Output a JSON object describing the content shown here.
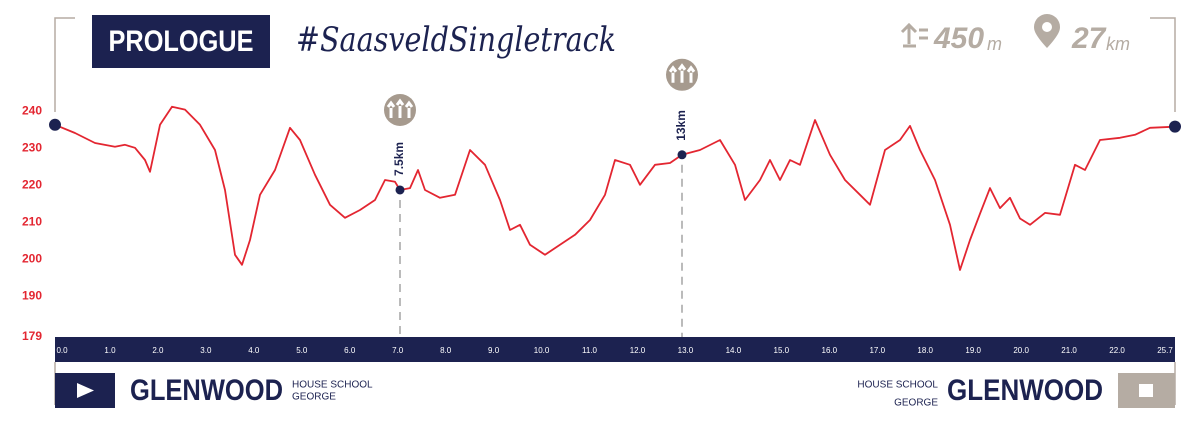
{
  "header": {
    "title": "PROLOGUE",
    "hashtag": "#SaasveldSingletrack",
    "climb": {
      "value": "450",
      "unit": "m"
    },
    "distance": {
      "value": "27",
      "unit": "km"
    }
  },
  "chart_data": {
    "type": "line",
    "color": "#e32631",
    "x": [
      0,
      0.4,
      0.8,
      1.2,
      1.4,
      1.6,
      1.8,
      1.9,
      2.1,
      2.34,
      2.6,
      2.9,
      3.2,
      3.4,
      3.6,
      3.74,
      3.9,
      4.1,
      4.4,
      4.7,
      4.9,
      5.2,
      5.5,
      5.8,
      6.1,
      6.4,
      6.6,
      6.8,
      6.9,
      7.1,
      7.26,
      7.4,
      7.7,
      8,
      8.3,
      8.6,
      8.9,
      9.1,
      9.3,
      9.5,
      9.8,
      10.1,
      10.4,
      10.7,
      11,
      11.2,
      11.5,
      11.7,
      12,
      12.3,
      12.54,
      12.9,
      13.3,
      13.6,
      13.8,
      14.1,
      14.3,
      14.5,
      14.7,
      14.9,
      15.2,
      15.5,
      15.8,
      16.1,
      16.3,
      16.6,
      16.9,
      17.1,
      17.3,
      17.6,
      17.9,
      18.1,
      18.3,
      18.5,
      18.7,
      18.9,
      19.1,
      19.3,
      19.5,
      19.8,
      20.1,
      20.4,
      20.6,
      20.9,
      21.3,
      21.6,
      21.9,
      22.4
    ],
    "values": [
      236.3,
      234.1,
      231.4,
      230.4,
      230.9,
      230.1,
      226.8,
      223.6,
      236.3,
      241.2,
      240.4,
      236.3,
      229.5,
      218.7,
      201.2,
      198.5,
      205.2,
      217.4,
      224.1,
      235.5,
      232.2,
      222.8,
      214.7,
      211.2,
      213.3,
      216.0,
      221.4,
      220.9,
      218.7,
      219.2,
      224.1,
      218.7,
      216.6,
      217.4,
      229.5,
      225.5,
      216.0,
      207.9,
      209.3,
      203.9,
      201.2,
      203.9,
      206.6,
      210.6,
      217.4,
      226.8,
      225.5,
      220.1,
      225.5,
      226.0,
      228.2,
      229.5,
      232.2,
      225.5,
      216.0,
      221.4,
      226.8,
      221.4,
      226.8,
      225.5,
      237.6,
      228.2,
      221.4,
      217.4,
      214.7,
      229.5,
      232.2,
      236.0,
      229.5,
      221.4,
      209.3,
      197.1,
      205.2,
      212.3,
      219.2,
      213.8,
      216.6,
      211.0,
      209.3,
      212.5,
      212.0,
      225.5,
      224.1,
      232.2,
      232.8,
      233.6,
      235.5,
      235.8
    ],
    "xlim": [
      0,
      22.4
    ],
    "ylim": [
      179,
      243
    ],
    "yticks": [
      240,
      230,
      220,
      210,
      200,
      190,
      179
    ],
    "distance_labels": [
      "0.0",
      "1.0",
      "2.0",
      "3.0",
      "4.0",
      "5.0",
      "6.0",
      "7.0",
      "8.0",
      "9.0",
      "10.0",
      "11.0",
      "12.0",
      "13.0",
      "14.0",
      "15.0",
      "16.0",
      "17.0",
      "18.0",
      "19.0",
      "20.0",
      "21.0",
      "22.0",
      "25.7"
    ],
    "waypoints": [
      {
        "label": "7.5km",
        "x": 6.9,
        "value": 218.7
      },
      {
        "label": "13km",
        "x": 12.54,
        "value": 228.2
      }
    ]
  },
  "footer": {
    "start": {
      "name": "GLENWOOD",
      "line1": "HOUSE SCHOOL",
      "line2": "GEORGE"
    },
    "finish": {
      "name": "GLENWOOD",
      "line1": "HOUSE SCHOOL",
      "line2": "GEORGE"
    }
  }
}
